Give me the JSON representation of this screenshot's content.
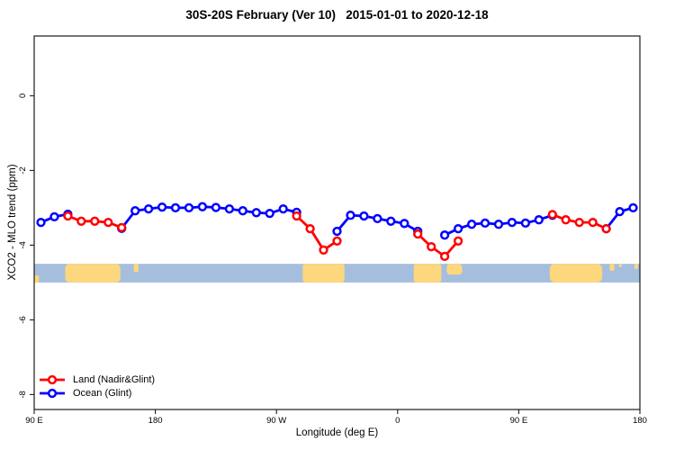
{
  "chart_data": {
    "type": "line",
    "title": "30S-20S February (Ver 10)   2015-01-01 to 2020-12-18",
    "xlabel": "Longitude (deg E)",
    "ylabel": "XCO2 - MLO trend (ppm)",
    "grid": false,
    "legend_position": "bottom-left-inside",
    "x_axis": {
      "description": "Longitude wrapping eastward: 90E -> 180 -> 90W -> 0 -> 90E -> 180",
      "tick_labels": [
        "90 E",
        "180",
        "90 W",
        "0",
        "90 E",
        "180"
      ],
      "tick_values": [
        90,
        180,
        270,
        360,
        450,
        540
      ],
      "range": [
        90,
        540
      ]
    },
    "y_axis": {
      "tick_labels": [
        "0",
        "-2",
        "-4",
        "-6",
        "-8"
      ],
      "tick_values": [
        0,
        -2,
        -4,
        -6,
        -8
      ],
      "range": [
        -8.4,
        1.6
      ]
    },
    "series": [
      {
        "name": "Ocean (Glint)",
        "color": "#0000ff",
        "marker": "open-circle",
        "segments": [
          [
            [
              95,
              -3.39
            ],
            [
              105,
              -3.24
            ],
            [
              115,
              -3.17
            ]
          ],
          [
            [
              155,
              -3.55
            ],
            [
              165,
              -3.08
            ],
            [
              175,
              -3.03
            ],
            [
              185,
              -2.98
            ],
            [
              195,
              -3.0
            ],
            [
              205,
              -3.0
            ],
            [
              215,
              -2.97
            ],
            [
              225,
              -2.99
            ],
            [
              235,
              -3.03
            ],
            [
              245,
              -3.08
            ],
            [
              255,
              -3.13
            ],
            [
              265,
              -3.15
            ],
            [
              275,
              -3.03
            ],
            [
              285,
              -3.12
            ]
          ],
          [
            [
              315,
              -3.63
            ],
            [
              325,
              -3.2
            ],
            [
              335,
              -3.22
            ],
            [
              345,
              -3.29
            ],
            [
              355,
              -3.36
            ],
            [
              365,
              -3.42
            ],
            [
              375,
              -3.63
            ]
          ],
          [
            [
              395,
              -3.73
            ],
            [
              405,
              -3.56
            ],
            [
              415,
              -3.44
            ],
            [
              425,
              -3.41
            ],
            [
              435,
              -3.44
            ],
            [
              445,
              -3.39
            ],
            [
              455,
              -3.41
            ],
            [
              465,
              -3.32
            ],
            [
              475,
              -3.2
            ]
          ],
          [
            [
              515,
              -3.56
            ],
            [
              525,
              -3.1
            ],
            [
              535,
              -3.0
            ]
          ]
        ]
      },
      {
        "name": "Land (Nadir&Glint)",
        "color": "#ff0000",
        "marker": "open-circle",
        "segments": [
          [
            [
              115,
              -3.22
            ],
            [
              125,
              -3.36
            ],
            [
              135,
              -3.36
            ],
            [
              145,
              -3.39
            ],
            [
              155,
              -3.53
            ]
          ],
          [
            [
              285,
              -3.22
            ],
            [
              295,
              -3.56
            ],
            [
              305,
              -4.13
            ],
            [
              315,
              -3.89
            ]
          ],
          [
            [
              375,
              -3.7
            ],
            [
              385,
              -4.04
            ],
            [
              395,
              -4.3
            ],
            [
              405,
              -3.89
            ]
          ],
          [
            [
              475,
              -3.18
            ],
            [
              485,
              -3.32
            ],
            [
              495,
              -3.39
            ],
            [
              505,
              -3.39
            ],
            [
              515,
              -3.56
            ]
          ]
        ]
      }
    ],
    "legend": [
      {
        "label": "Land (Nadir&Glint)",
        "color": "#ff0000"
      },
      {
        "label": "Ocean (Glint)",
        "color": "#0000ff"
      }
    ],
    "map_band": {
      "description": "30S-20S latitude strip map: ocean blue with yellow land patches",
      "y_top_ppm": -4.5,
      "y_bottom_ppm": -5.0,
      "ocean_color": "#a6bedd",
      "land_color": "#fcd77e",
      "land_patches": [
        {
          "name": "sw-wedge",
          "l0": 90,
          "l1": 93.5,
          "top": 0.62,
          "bottom": 1,
          "rx": 1
        },
        {
          "name": "australia",
          "l0": 113,
          "l1": 154,
          "top": 0,
          "bottom": 1,
          "rx": 5
        },
        {
          "name": "new-caledonia",
          "l0": 164,
          "l1": 167.5,
          "top": 0,
          "bottom": 0.45,
          "rx": 2
        },
        {
          "name": "south-america",
          "l0": 289.5,
          "l1": 320.5,
          "top": 0,
          "bottom": 1,
          "rx": 3
        },
        {
          "name": "southern-africa",
          "l0": 372,
          "l1": 392.5,
          "top": 0,
          "bottom": 1,
          "rx": 3
        },
        {
          "name": "madagascar",
          "l0": 396.5,
          "l1": 408,
          "top": 0,
          "bottom": 0.58,
          "rx": 4
        },
        {
          "name": "australia-2",
          "l0": 473,
          "l1": 512,
          "top": 0,
          "bottom": 1,
          "rx": 6
        },
        {
          "name": "new-caledonia-2",
          "l0": 517.5,
          "l1": 521,
          "top": 0,
          "bottom": 0.38,
          "rx": 2
        },
        {
          "name": "islet",
          "l0": 524.5,
          "l1": 526.5,
          "top": 0,
          "bottom": 0.18,
          "rx": 1
        },
        {
          "name": "fiji",
          "l0": 536,
          "l1": 538.5,
          "top": 0,
          "bottom": 0.28,
          "rx": 1
        }
      ]
    }
  }
}
